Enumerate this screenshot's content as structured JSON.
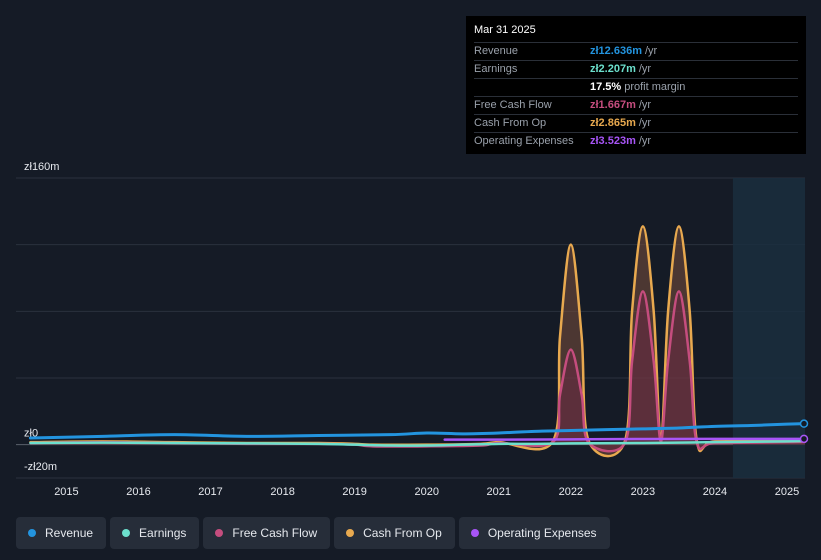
{
  "tooltip": {
    "date": "Mar 31 2025",
    "rows": [
      {
        "label": "Revenue",
        "value": "zł12.636m",
        "unit": "/yr",
        "color": "#2394df"
      },
      {
        "label": "Earnings",
        "value": "zł2.207m",
        "unit": "/yr",
        "color": "#6ce0cd"
      },
      {
        "label": "",
        "value": "17.5%",
        "unit": "profit margin",
        "color": "#ffffff"
      },
      {
        "label": "Free Cash Flow",
        "value": "zł1.667m",
        "unit": "/yr",
        "color": "#c54d7e"
      },
      {
        "label": "Cash From Op",
        "value": "zł2.865m",
        "unit": "/yr",
        "color": "#e8a94f"
      },
      {
        "label": "Operating Expenses",
        "value": "zł3.523m",
        "unit": "/yr",
        "color": "#a855f7"
      }
    ]
  },
  "legend": [
    {
      "label": "Revenue",
      "color": "#2394df"
    },
    {
      "label": "Earnings",
      "color": "#6ce0cd"
    },
    {
      "label": "Free Cash Flow",
      "color": "#c54d7e"
    },
    {
      "label": "Cash From Op",
      "color": "#e8a94f"
    },
    {
      "label": "Operating Expenses",
      "color": "#a855f7"
    }
  ],
  "chart_data": {
    "type": "line",
    "y_tick_labels": [
      "zł160m",
      "zł0",
      "-zł20m"
    ],
    "y_ticks": [
      160,
      0,
      -20
    ],
    "ylim": [
      -20,
      160
    ],
    "x_tick_labels": [
      "2015",
      "2016",
      "2017",
      "2018",
      "2019",
      "2020",
      "2021",
      "2022",
      "2023",
      "2024",
      "2025"
    ],
    "xlim": [
      2014.3,
      2025.25
    ],
    "forecast_start": 2024.25,
    "series": [
      {
        "name": "Revenue",
        "color": "#2394df",
        "x": [
          2014.5,
          2015.5,
          2016.5,
          2017.5,
          2018.5,
          2019.5,
          2020.0,
          2020.5,
          2021.0,
          2021.5,
          2022.0,
          2022.5,
          2023.0,
          2023.5,
          2024.0,
          2024.5,
          2025.0,
          2025.25
        ],
        "y": [
          4,
          5,
          6,
          5,
          5.5,
          6,
          7,
          6.5,
          7,
          8,
          8.5,
          9,
          9.5,
          10,
          11,
          11.5,
          12.3,
          12.6
        ]
      },
      {
        "name": "Earnings",
        "color": "#6ce0cd",
        "x": [
          2014.5,
          2015.5,
          2016.5,
          2017.5,
          2018.5,
          2019.0,
          2019.5,
          2020.0,
          2020.5,
          2021.0,
          2021.5,
          2022.0,
          2023.0,
          2024.0,
          2025.0,
          2025.25
        ],
        "y": [
          1,
          1.2,
          1,
          0.8,
          0.5,
          0,
          -0.5,
          -0.5,
          0,
          0.5,
          0.5,
          0.8,
          1,
          1.5,
          2,
          2.2
        ]
      },
      {
        "name": "Free Cash Flow",
        "color": "#c54d7e",
        "x": [
          2014.5,
          2015.5,
          2016.5,
          2017.5,
          2018.5,
          2019.0,
          2019.25,
          2020.0,
          2020.75,
          2021.0,
          2021.75,
          2021.85,
          2022.0,
          2022.15,
          2022.25,
          2022.75,
          2022.85,
          2023.0,
          2023.15,
          2023.25,
          2023.35,
          2023.5,
          2023.65,
          2023.75,
          2024.0,
          2025.0,
          2025.25
        ],
        "y": [
          1,
          1.5,
          1,
          0.5,
          0.5,
          0,
          -1,
          -1,
          -0.5,
          1,
          1.5,
          30,
          57,
          30,
          1,
          1,
          50,
          92,
          50,
          2,
          50,
          92,
          50,
          1,
          1,
          1.5,
          1.7
        ]
      },
      {
        "name": "Cash From Op",
        "color": "#e8a94f",
        "x": [
          2014.5,
          2015.5,
          2016.5,
          2017.5,
          2018.5,
          2019.0,
          2019.25,
          2020.0,
          2020.75,
          2021.0,
          2021.75,
          2021.85,
          2022.0,
          2022.15,
          2022.25,
          2022.75,
          2022.85,
          2023.0,
          2023.15,
          2023.25,
          2023.35,
          2023.5,
          2023.65,
          2023.75,
          2024.0,
          2025.0,
          2025.25
        ],
        "y": [
          1.5,
          2,
          1.5,
          1,
          1,
          0.5,
          0,
          0,
          0.5,
          1.5,
          2,
          65,
          120,
          65,
          2,
          2,
          80,
          131,
          80,
          2,
          80,
          131,
          80,
          2,
          2,
          2.5,
          2.9
        ]
      },
      {
        "name": "Operating Expenses",
        "color": "#a855f7",
        "x": [
          2020.25,
          2021.0,
          2022.0,
          2023.0,
          2024.0,
          2025.0,
          2025.25
        ],
        "y": [
          3,
          3,
          3.2,
          3.4,
          3.5,
          3.5,
          3.5
        ]
      }
    ]
  }
}
